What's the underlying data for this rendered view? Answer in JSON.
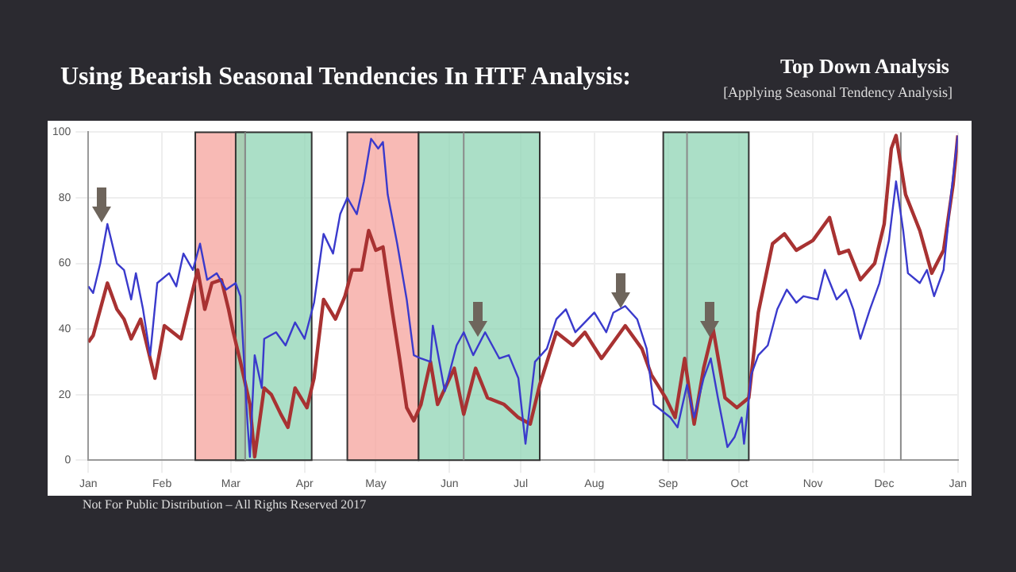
{
  "chart_data": {
    "type": "line",
    "title": "Using Bearish Seasonal Tendencies In HTF Analysis:",
    "subtitle": "Top Down Analysis",
    "annotations": [
      "[Applying Seasonal Tendency Analysis]",
      "Not For Public Distribution – All Rights Reserved 2017"
    ],
    "xlim": [
      "2016-01-01",
      "2017-01-01"
    ],
    "xticks": [
      {
        "value": "2016-01-01",
        "label": "Jan"
      },
      {
        "value": "2016-02-01",
        "label": "Feb"
      },
      {
        "value": "2016-03-01",
        "label": "Mar"
      },
      {
        "value": "2016-04-01",
        "label": "Apr"
      },
      {
        "value": "2016-05-01",
        "label": "May"
      },
      {
        "value": "2016-06-01",
        "label": "Jun"
      },
      {
        "value": "2016-07-01",
        "label": "Jul"
      },
      {
        "value": "2016-08-01",
        "label": "Aug"
      },
      {
        "value": "2016-09-01",
        "label": "Sep"
      },
      {
        "value": "2016-10-01",
        "label": "Oct"
      },
      {
        "value": "2016-11-01",
        "label": "Nov"
      },
      {
        "value": "2016-12-01",
        "label": "Dec"
      },
      {
        "value": "2017-01-01",
        "label": "Jan"
      }
    ],
    "ylim": [
      0,
      100
    ],
    "yticks": [
      0,
      20,
      40,
      60,
      80,
      100
    ],
    "grid": true,
    "legend": false,
    "marker": "none",
    "line_style": "solid",
    "series": [
      {
        "color": "#3a3acc",
        "x": [
          "2016-01-01",
          "2016-01-03",
          "2016-01-06",
          "2016-01-09",
          "2016-01-13",
          "2016-01-16",
          "2016-01-19",
          "2016-01-21",
          "2016-01-24",
          "2016-01-27",
          "2016-01-30",
          "2016-02-04",
          "2016-02-07",
          "2016-02-10",
          "2016-02-14",
          "2016-02-17",
          "2016-02-20",
          "2016-02-24",
          "2016-02-28",
          "2016-03-03",
          "2016-03-05",
          "2016-03-08",
          "2016-03-09",
          "2016-03-11",
          "2016-03-14",
          "2016-03-15",
          "2016-03-20",
          "2016-03-24",
          "2016-03-28",
          "2016-04-01",
          "2016-04-05",
          "2016-04-09",
          "2016-04-13",
          "2016-04-16",
          "2016-04-19",
          "2016-04-23",
          "2016-04-26",
          "2016-04-29",
          "2016-05-02",
          "2016-05-04",
          "2016-05-06",
          "2016-05-10",
          "2016-05-14",
          "2016-05-17",
          "2016-05-20",
          "2016-05-24",
          "2016-05-25",
          "2016-05-30",
          "2016-06-04",
          "2016-06-07",
          "2016-06-11",
          "2016-06-16",
          "2016-06-22",
          "2016-06-26",
          "2016-06-30",
          "2016-07-03",
          "2016-07-07",
          "2016-07-12",
          "2016-07-16",
          "2016-07-20",
          "2016-07-24",
          "2016-08-01",
          "2016-08-06",
          "2016-08-09",
          "2016-08-14",
          "2016-08-19",
          "2016-08-23",
          "2016-08-26",
          "2016-09-02",
          "2016-09-05",
          "2016-09-09",
          "2016-09-12",
          "2016-09-16",
          "2016-09-19",
          "2016-09-22",
          "2016-09-26",
          "2016-09-29",
          "2016-10-02",
          "2016-10-03",
          "2016-10-06",
          "2016-10-09",
          "2016-10-13",
          "2016-10-17",
          "2016-10-21",
          "2016-10-25",
          "2016-10-28",
          "2016-11-03",
          "2016-11-06",
          "2016-11-11",
          "2016-11-15",
          "2016-11-18",
          "2016-11-21",
          "2016-11-25",
          "2016-11-29",
          "2016-12-03",
          "2016-12-06",
          "2016-12-09",
          "2016-12-11",
          "2016-12-16",
          "2016-12-19",
          "2016-12-22",
          "2016-12-26",
          "2016-12-29",
          "2017-01-01"
        ],
        "values": [
          53,
          51,
          60,
          72,
          60,
          58,
          49,
          57,
          46,
          32,
          54,
          57,
          53,
          63,
          58,
          66,
          55,
          57,
          52,
          54,
          50,
          11,
          1,
          32,
          22,
          37,
          39,
          35,
          42,
          37,
          48,
          69,
          63,
          75,
          80,
          75,
          85,
          98,
          95,
          97,
          81,
          66,
          49,
          32,
          31,
          30,
          41,
          21,
          35,
          39,
          32,
          39,
          31,
          32,
          25,
          5,
          30,
          34,
          43,
          46,
          39,
          45,
          39,
          45,
          47,
          43,
          34,
          17,
          13,
          10,
          23,
          13,
          25,
          31,
          19,
          4,
          7,
          13,
          5,
          26,
          32,
          35,
          46,
          52,
          48,
          50,
          49,
          58,
          49,
          52,
          46,
          37,
          46,
          54,
          67,
          85,
          70,
          57,
          54,
          58,
          50,
          58,
          80,
          99
        ]
      },
      {
        "color": "#a83232",
        "x": [
          "2016-01-01",
          "2016-01-03",
          "2016-01-06",
          "2016-01-09",
          "2016-01-13",
          "2016-01-16",
          "2016-01-19",
          "2016-01-23",
          "2016-01-29",
          "2016-02-02",
          "2016-02-09",
          "2016-02-12",
          "2016-02-16",
          "2016-02-19",
          "2016-02-22",
          "2016-02-26",
          "2016-02-29",
          "2016-03-02",
          "2016-03-05",
          "2016-03-09",
          "2016-03-11",
          "2016-03-15",
          "2016-03-18",
          "2016-03-22",
          "2016-03-25",
          "2016-03-28",
          "2016-04-02",
          "2016-04-05",
          "2016-04-09",
          "2016-04-14",
          "2016-04-18",
          "2016-04-21",
          "2016-04-25",
          "2016-04-28",
          "2016-05-01",
          "2016-05-04",
          "2016-05-08",
          "2016-05-11",
          "2016-05-14",
          "2016-05-17",
          "2016-05-20",
          "2016-05-24",
          "2016-05-27",
          "2016-06-03",
          "2016-06-07",
          "2016-06-12",
          "2016-06-17",
          "2016-06-24",
          "2016-06-30",
          "2016-07-05",
          "2016-07-09",
          "2016-07-16",
          "2016-07-23",
          "2016-07-28",
          "2016-08-04",
          "2016-08-10",
          "2016-08-14",
          "2016-08-21",
          "2016-08-25",
          "2016-08-31",
          "2016-09-04",
          "2016-09-08",
          "2016-09-12",
          "2016-09-16",
          "2016-09-20",
          "2016-09-25",
          "2016-09-30",
          "2016-10-05",
          "2016-10-09",
          "2016-10-15",
          "2016-10-20",
          "2016-10-25",
          "2016-11-01",
          "2016-11-08",
          "2016-11-12",
          "2016-11-16",
          "2016-11-21",
          "2016-11-27",
          "2016-12-01",
          "2016-12-04",
          "2016-12-06",
          "2016-12-10",
          "2016-12-16",
          "2016-12-21",
          "2016-12-26",
          "2016-12-30",
          "2017-01-01"
        ],
        "values": [
          36,
          38,
          46,
          54,
          46,
          43,
          37,
          43,
          25,
          41,
          37,
          46,
          58,
          46,
          54,
          55,
          46,
          39,
          30,
          17,
          1,
          22,
          20,
          14,
          10,
          22,
          16,
          25,
          49,
          43,
          50,
          58,
          58,
          70,
          64,
          65,
          45,
          31,
          16,
          12,
          17,
          30,
          17,
          28,
          14,
          28,
          19,
          17,
          13,
          11,
          23,
          39,
          35,
          39,
          31,
          37,
          41,
          34,
          26,
          19,
          13,
          31,
          11,
          28,
          40,
          19,
          16,
          19,
          45,
          66,
          69,
          64,
          67,
          74,
          63,
          64,
          55,
          60,
          72,
          95,
          99,
          81,
          70,
          57,
          64,
          84,
          99
        ]
      }
    ],
    "bands": [
      {
        "axis": "x",
        "from": "2016-02-15",
        "to": "2016-03-07",
        "color": "#f5a39c"
      },
      {
        "axis": "x",
        "from": "2016-04-19",
        "to": "2016-05-19",
        "color": "#f5a39c"
      },
      {
        "axis": "x",
        "from": "2016-03-03",
        "to": "2016-04-04",
        "color": "#8fd4b4"
      },
      {
        "axis": "x",
        "from": "2016-05-19",
        "to": "2016-07-09",
        "color": "#8fd4b4"
      },
      {
        "axis": "x",
        "from": "2016-08-30",
        "to": "2016-10-05",
        "color": "#8fd4b4"
      }
    ],
    "ref_lines": [
      {
        "axis": "x",
        "value": "2016-03-07",
        "color": "#8a8a8a"
      },
      {
        "axis": "x",
        "value": "2016-06-07",
        "color": "#8a8a8a"
      },
      {
        "axis": "x",
        "value": "2016-09-09",
        "color": "#8a8a8a"
      },
      {
        "axis": "x",
        "value": "2016-12-08",
        "color": "#8a8a8a"
      }
    ]
  }
}
